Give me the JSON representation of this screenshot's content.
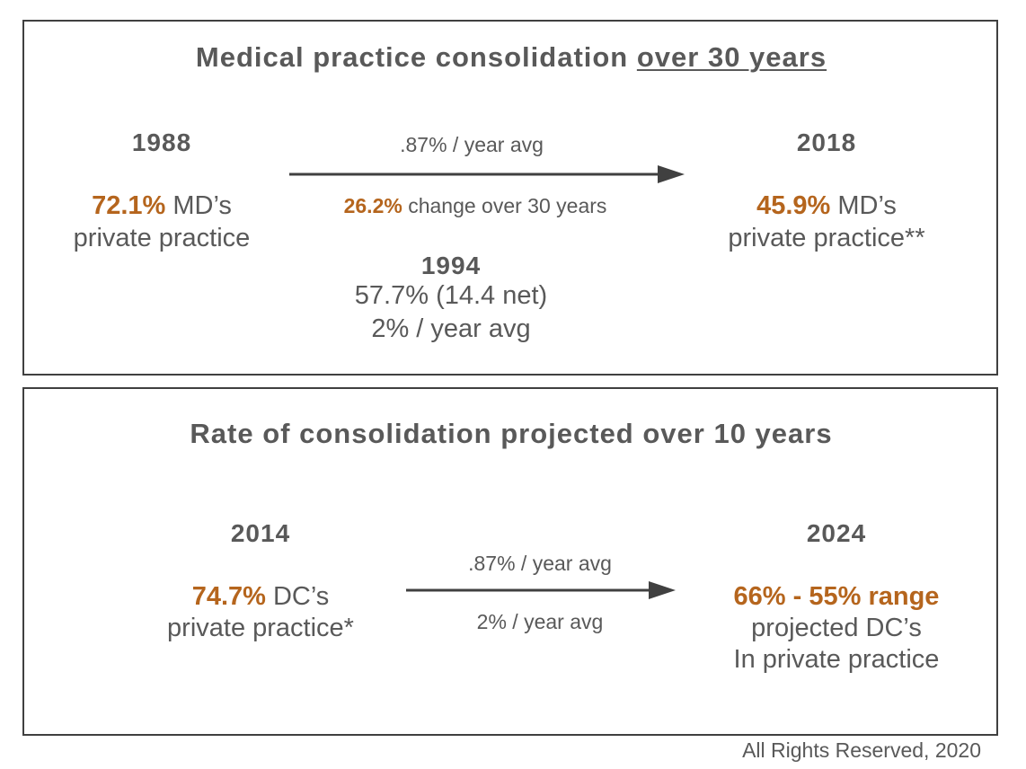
{
  "colors": {
    "accent": "#b5651d",
    "text": "#595959",
    "border": "#404040"
  },
  "top": {
    "title_main": "Medical practice consolidation ",
    "title_underlined": "over 30 years",
    "left": {
      "year": "1988",
      "value": "72.1%",
      "value_suffix": " MD’s",
      "line2": "private practice"
    },
    "middle": {
      "rate": ".87%  / year avg",
      "change_value": "26.2%",
      "change_text": "  change  over  30  years",
      "mid_year": "1994",
      "mid_value": "57.7% (14.4 net)",
      "mid_rate": "2% / year avg"
    },
    "right": {
      "year": "2018",
      "value": "45.9%",
      "value_suffix": " MD’s",
      "line2": "private practice**"
    }
  },
  "bottom": {
    "title": "Rate of consolidation projected over 10 years",
    "left": {
      "year": "2014",
      "value": "74.7%",
      "value_suffix": " DC’s",
      "line2": "private practice*"
    },
    "middle": {
      "rate_top": ".87% / year avg",
      "rate_bottom": "2% / year avg"
    },
    "right": {
      "year": "2024",
      "range": "66% - 55% range",
      "line2": "projected DC’s",
      "line3": "In private practice"
    }
  },
  "footer": {
    "copyright": "All Rights Reserved, 2020"
  }
}
